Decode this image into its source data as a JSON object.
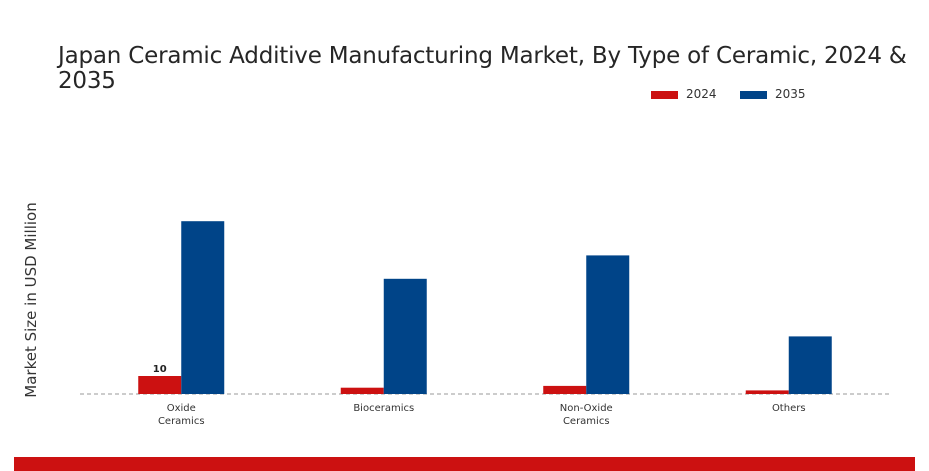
{
  "chart_data": {
    "type": "bar",
    "title": "Japan Ceramic Additive Manufacturing Market, By Type of Ceramic, 2024 & 2035",
    "xlabel": "",
    "ylabel": "Market Size in USD Million",
    "categories": [
      [
        "Oxide",
        "Ceramics"
      ],
      [
        "Bioceramics"
      ],
      [
        "Non-Oxide",
        "Ceramics"
      ],
      [
        "Others"
      ]
    ],
    "series": [
      {
        "name": "2024",
        "color": "#cc1111",
        "values": [
          10,
          3.5,
          4.5,
          2
        ]
      },
      {
        "name": "2035",
        "color": "#004488",
        "values": [
          96,
          64,
          77,
          32
        ]
      }
    ],
    "data_labels": [
      {
        "series": 0,
        "index": 0,
        "text": "10"
      }
    ],
    "ylim": [
      0,
      120
    ],
    "grid": false,
    "legend_position": "top-right",
    "baseline": "dashed"
  }
}
